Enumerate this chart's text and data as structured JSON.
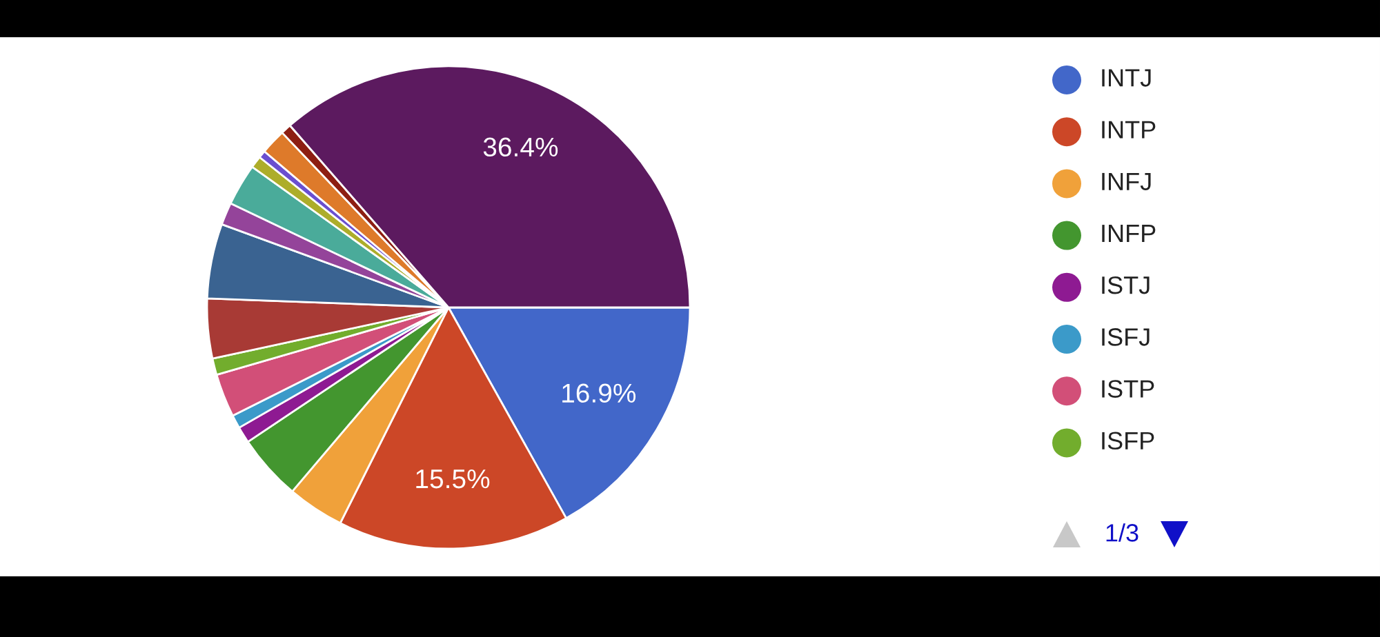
{
  "chart_data": {
    "type": "pie",
    "categories": [
      "INTJ",
      "INTP",
      "INFJ",
      "INFP",
      "ISTJ",
      "ISFJ",
      "ISTP",
      "ISFP",
      null,
      null,
      null,
      null,
      null,
      null,
      null,
      null,
      null
    ],
    "values": [
      16.9,
      15.5,
      3.8,
      4.4,
      1.1,
      0.9,
      2.9,
      1.1,
      4.0,
      5.0,
      1.5,
      2.8,
      0.8,
      0.5,
      1.7,
      0.7,
      36.4
    ],
    "colors": [
      "#4267c9",
      "#cc4727",
      "#f0a13a",
      "#43962f",
      "#8e1a92",
      "#3b9ac9",
      "#d24f78",
      "#72ad2d",
      "#a83a35",
      "#3a6391",
      "#94449a",
      "#4aab9a",
      "#adad2a",
      "#6a4fd0",
      "#de7a2a",
      "#8d1e12",
      "#5c1a5f"
    ],
    "value_labels": [
      "16.9%",
      "15.5%",
      null,
      null,
      null,
      null,
      null,
      null,
      null,
      null,
      null,
      null,
      null,
      null,
      null,
      null,
      "36.4%"
    ],
    "legend": "right",
    "annotations": [
      "1/3"
    ]
  }
}
